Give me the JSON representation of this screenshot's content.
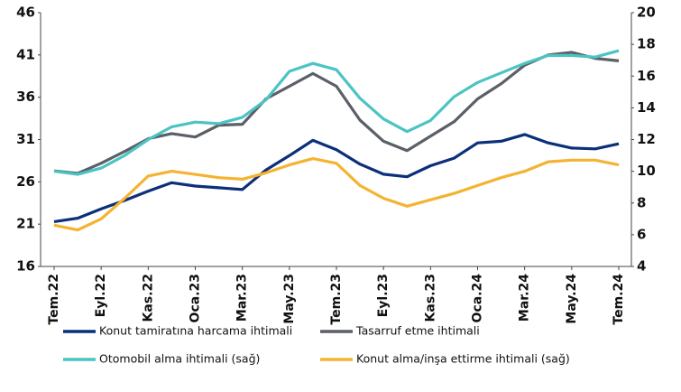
{
  "chart_data": {
    "type": "line",
    "categories": [
      "Tem.22",
      null,
      "Eyl.22",
      null,
      "Kas.22",
      null,
      "Oca.23",
      null,
      "Mar.23",
      null,
      "May.23",
      null,
      "Tem.23",
      null,
      "Eyl.23",
      null,
      "Kas.23",
      null,
      "Oca.24",
      null,
      "Mar.24",
      null,
      "May.24",
      null,
      "Tem.24"
    ],
    "ylim": [
      16,
      46
    ],
    "yticks": [
      16,
      21,
      26,
      31,
      36,
      41,
      46
    ],
    "y2lim": [
      4,
      20
    ],
    "y2ticks": [
      4,
      6,
      8,
      10,
      12,
      14,
      16,
      18,
      20
    ],
    "grid": false,
    "series": [
      {
        "name": "Konut tamiratına harcama ihtimali",
        "color": "#0b2f7a",
        "values": [
          21.3,
          21.7,
          22.8,
          23.8,
          24.9,
          25.9,
          25.5,
          25.3,
          25.1,
          27.4,
          29.1,
          30.9,
          29.8,
          28.1,
          26.9,
          26.6,
          27.9,
          28.8,
          30.6,
          30.8,
          31.6,
          30.6,
          30.0,
          29.9,
          30.5
        ]
      },
      {
        "name": "Tasarruf etme ihtimali",
        "color": "#5b5f66",
        "values": [
          27.3,
          27.0,
          28.2,
          29.6,
          31.1,
          31.7,
          31.3,
          32.7,
          32.8,
          35.8,
          37.3,
          38.8,
          37.3,
          33.3,
          30.8,
          29.7,
          31.4,
          33.1,
          35.8,
          37.6,
          39.8,
          41.0,
          41.3,
          40.6,
          40.3
        ]
      },
      {
        "name": "Otomobil alma ihtimali (sağ)",
        "color": "#4cc3c4",
        "axis": "y2",
        "values": [
          10.0,
          9.8,
          10.2,
          11.0,
          12.0,
          12.8,
          13.1,
          13.0,
          13.4,
          14.5,
          16.3,
          16.8,
          16.4,
          14.6,
          13.3,
          12.5,
          13.2,
          14.7,
          15.6,
          16.2,
          16.8,
          17.3,
          17.3,
          17.2,
          17.6
        ]
      },
      {
        "name": "Konut alma/inşa ettirme ihtimali (sağ)",
        "color": "#f4b331",
        "axis": "y2",
        "values": [
          6.6,
          6.3,
          7.0,
          8.3,
          9.7,
          10.0,
          9.8,
          9.6,
          9.5,
          9.9,
          10.4,
          10.8,
          10.5,
          9.1,
          8.3,
          7.8,
          8.2,
          8.6,
          9.1,
          9.6,
          10.0,
          10.6,
          10.7,
          10.7,
          10.4
        ]
      }
    ]
  }
}
